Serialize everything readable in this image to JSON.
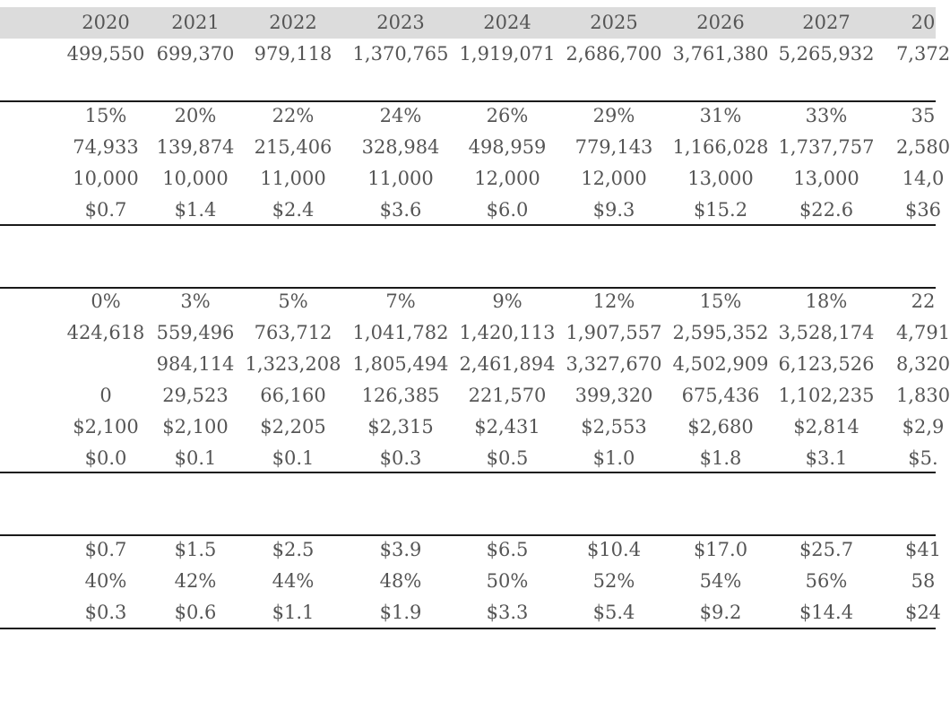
{
  "years": [
    "2020",
    "2021",
    "2022",
    "2023",
    "2024",
    "2025",
    "2026",
    "2027",
    "20"
  ],
  "rows": [
    {
      "id": "row-1",
      "cells": [
        "499,550",
        "699,370",
        "979,118",
        "1,370,765",
        "1,919,071",
        "2,686,700",
        "3,761,380",
        "5,265,932",
        "7,372"
      ]
    },
    {
      "id": "row-2",
      "cells": [
        "15%",
        "20%",
        "22%",
        "24%",
        "26%",
        "29%",
        "31%",
        "33%",
        "35"
      ]
    },
    {
      "id": "row-3",
      "cells": [
        "74,933",
        "139,874",
        "215,406",
        "328,984",
        "498,959",
        "779,143",
        "1,166,028",
        "1,737,757",
        "2,580"
      ]
    },
    {
      "id": "row-4",
      "cells": [
        "10,000",
        "10,000",
        "11,000",
        "11,000",
        "12,000",
        "12,000",
        "13,000",
        "13,000",
        "14,0"
      ]
    },
    {
      "id": "row-5",
      "cells": [
        "$0.7",
        "$1.4",
        "$2.4",
        "$3.6",
        "$6.0",
        "$9.3",
        "$15.2",
        "$22.6",
        "$36"
      ]
    },
    {
      "id": "row-6",
      "cells": [
        "0%",
        "3%",
        "5%",
        "7%",
        "9%",
        "12%",
        "15%",
        "18%",
        "22"
      ]
    },
    {
      "id": "row-7",
      "cells": [
        "424,618",
        "559,496",
        "763,712",
        "1,041,782",
        "1,420,113",
        "1,907,557",
        "2,595,352",
        "3,528,174",
        "4,791"
      ]
    },
    {
      "id": "row-8",
      "cells": [
        "",
        "984,114",
        "1,323,208",
        "1,805,494",
        "2,461,894",
        "3,327,670",
        "4,502,909",
        "6,123,526",
        "8,320"
      ]
    },
    {
      "id": "row-9",
      "cells": [
        "0",
        "29,523",
        "66,160",
        "126,385",
        "221,570",
        "399,320",
        "675,436",
        "1,102,235",
        "1,830"
      ]
    },
    {
      "id": "row-10",
      "cells": [
        "$2,100",
        "$2,100",
        "$2,205",
        "$2,315",
        "$2,431",
        "$2,553",
        "$2,680",
        "$2,814",
        "$2,9"
      ]
    },
    {
      "id": "row-11",
      "cells": [
        "$0.0",
        "$0.1",
        "$0.1",
        "$0.3",
        "$0.5",
        "$1.0",
        "$1.8",
        "$3.1",
        "$5."
      ]
    },
    {
      "id": "row-12",
      "cells": [
        "$0.7",
        "$1.5",
        "$2.5",
        "$3.9",
        "$6.5",
        "$10.4",
        "$17.0",
        "$25.7",
        "$41"
      ]
    },
    {
      "id": "row-13",
      "cells": [
        "40%",
        "42%",
        "44%",
        "48%",
        "50%",
        "52%",
        "54%",
        "56%",
        "58"
      ]
    },
    {
      "id": "row-14",
      "cells": [
        "$0.3",
        "$0.6",
        "$1.1",
        "$1.9",
        "$3.3",
        "$5.4",
        "$9.2",
        "$14.4",
        "$24"
      ]
    }
  ]
}
